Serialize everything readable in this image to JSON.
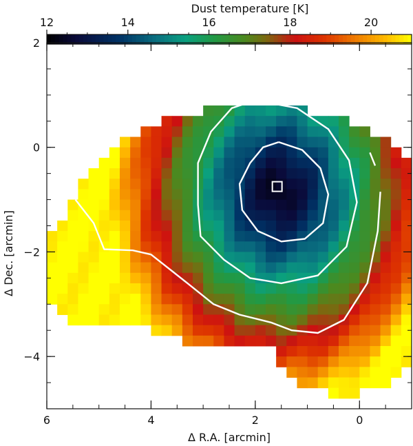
{
  "chart_data": {
    "type": "heatmap",
    "colorbar": {
      "label": "Dust temperature [K]",
      "range": [
        12,
        21
      ],
      "ticks": [
        12,
        14,
        16,
        18,
        20
      ],
      "tick_labels": [
        "12",
        "14",
        "16",
        "18",
        "20"
      ],
      "colormap": "black-blue-green-red-orange-yellow",
      "stops": [
        {
          "t": 0.0,
          "color": "#000000"
        },
        {
          "t": 0.08,
          "color": "#0a0a3a"
        },
        {
          "t": 0.2,
          "color": "#003366"
        },
        {
          "t": 0.3,
          "color": "#0a7080"
        },
        {
          "t": 0.38,
          "color": "#0aa080"
        },
        {
          "t": 0.46,
          "color": "#229944"
        },
        {
          "t": 0.54,
          "color": "#4a8a20"
        },
        {
          "t": 0.6,
          "color": "#7a6a10"
        },
        {
          "t": 0.68,
          "color": "#cc1111"
        },
        {
          "t": 0.76,
          "color": "#dd3300"
        },
        {
          "t": 0.84,
          "color": "#ee7700"
        },
        {
          "t": 0.93,
          "color": "#ffbb00"
        },
        {
          "t": 1.0,
          "color": "#ffff00"
        }
      ]
    },
    "xlabel": "Δ R.A. [arcmin]",
    "ylabel": "Δ Dec. [arcmin]",
    "xlim": [
      6,
      -1
    ],
    "ylim": [
      -5,
      2
    ],
    "x_ticks": [
      6,
      4,
      2,
      0
    ],
    "x_tick_labels": [
      "6",
      "4",
      "2",
      "0"
    ],
    "y_ticks": [
      2,
      0,
      -2,
      -4
    ],
    "y_tick_labels": [
      "2",
      "0",
      "−2",
      "−4"
    ],
    "grid": false,
    "pixel_size_arcmin": 0.2,
    "temperature_model": {
      "core_center": [
        1.55,
        -0.85
      ],
      "core_temperature_K": 12.1,
      "outer_temperature_K": 21.0
    },
    "contours": [
      {
        "name": "inner",
        "color": "#ffffff",
        "points": [
          [
            1.55,
            0.1
          ],
          [
            1.1,
            -0.05
          ],
          [
            0.75,
            -0.4
          ],
          [
            0.6,
            -0.9
          ],
          [
            0.7,
            -1.45
          ],
          [
            1.05,
            -1.75
          ],
          [
            1.5,
            -1.8
          ],
          [
            1.95,
            -1.6
          ],
          [
            2.25,
            -1.2
          ],
          [
            2.3,
            -0.7
          ],
          [
            2.1,
            -0.3
          ],
          [
            1.85,
            0.0
          ],
          [
            1.55,
            0.1
          ]
        ]
      },
      {
        "name": "middle",
        "color": "#ffffff",
        "points": [
          [
            2.0,
            0.9
          ],
          [
            1.2,
            0.75
          ],
          [
            0.6,
            0.35
          ],
          [
            0.2,
            -0.25
          ],
          [
            0.05,
            -1.05
          ],
          [
            0.25,
            -1.9
          ],
          [
            0.8,
            -2.45
          ],
          [
            1.5,
            -2.6
          ],
          [
            2.1,
            -2.5
          ],
          [
            2.6,
            -2.15
          ],
          [
            3.05,
            -1.7
          ],
          [
            3.1,
            -1.1
          ],
          [
            3.1,
            -0.3
          ],
          [
            2.85,
            0.3
          ],
          [
            2.45,
            0.75
          ],
          [
            2.0,
            0.9
          ]
        ]
      },
      {
        "name": "outer",
        "color": "#ffffff",
        "points": [
          [
            5.45,
            -1.0
          ],
          [
            5.1,
            -1.45
          ],
          [
            4.9,
            -1.95
          ],
          [
            4.35,
            -1.97
          ],
          [
            4.0,
            -2.05
          ],
          [
            3.3,
            -2.6
          ],
          [
            2.8,
            -3.0
          ],
          [
            2.3,
            -3.2
          ],
          [
            1.7,
            -3.35
          ],
          [
            1.3,
            -3.5
          ],
          [
            0.8,
            -3.55
          ],
          [
            0.3,
            -3.3
          ],
          [
            -0.15,
            -2.6
          ],
          [
            -0.35,
            -1.6
          ],
          [
            -0.4,
            -0.85
          ]
        ]
      },
      {
        "name": "fragment",
        "color": "#ffffff",
        "points": [
          [
            -0.2,
            -0.1
          ],
          [
            -0.3,
            -0.35
          ]
        ]
      }
    ],
    "marker": {
      "type": "open-square",
      "x": 1.58,
      "y": -0.75,
      "color": "#ffffff"
    }
  }
}
